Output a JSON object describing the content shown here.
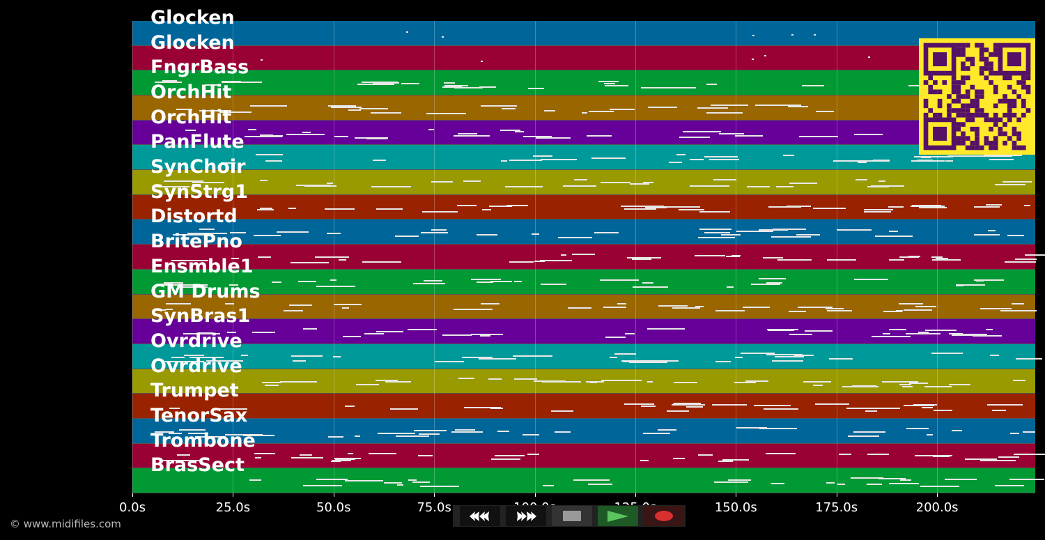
{
  "tracks": [
    {
      "name": "Glocken",
      "color": "#006699"
    },
    {
      "name": "Glocken",
      "color": "#990033"
    },
    {
      "name": "FngrBass",
      "color": "#009933"
    },
    {
      "name": "OrchHit",
      "color": "#996600"
    },
    {
      "name": "OrchHit",
      "color": "#660099"
    },
    {
      "name": "PanFlute",
      "color": "#009999"
    },
    {
      "name": "SynChoir",
      "color": "#999900"
    },
    {
      "name": "SynStrg1",
      "color": "#992200"
    },
    {
      "name": "Distortd",
      "color": "#006699"
    },
    {
      "name": "BritePno",
      "color": "#990033"
    },
    {
      "name": "Ensmble1",
      "color": "#009933"
    },
    {
      "name": "GM Drums",
      "color": "#996600"
    },
    {
      "name": "SynBras1",
      "color": "#660099"
    },
    {
      "name": "Ovrdrive",
      "color": "#009999"
    },
    {
      "name": "Ovrdrive",
      "color": "#999900"
    },
    {
      "name": "Trumpet",
      "color": "#992200"
    },
    {
      "name": "TenorSax",
      "color": "#006699"
    },
    {
      "name": "Trombone",
      "color": "#990033"
    },
    {
      "name": "BrasSect",
      "color": "#009933"
    }
  ],
  "time_axis": {
    "max_seconds": 224.4,
    "ticks": [
      "0.0s",
      "25.0s",
      "50.0s",
      "75.0s",
      "100.0s",
      "125.0s",
      "150.0s",
      "175.0s",
      "200.0s"
    ],
    "tick_values": [
      0,
      25,
      50,
      75,
      100,
      125,
      150,
      175,
      200
    ]
  },
  "controls": {
    "rewind_icon": "rewind-icon",
    "forward_icon": "fast-forward-icon",
    "stop_icon": "stop-icon",
    "play_icon": "play-icon",
    "record_icon": "record-icon"
  },
  "copyright": "© www.midifiles.com",
  "qr_colors": {
    "background": "#ffe92a",
    "foreground": "#551166"
  }
}
